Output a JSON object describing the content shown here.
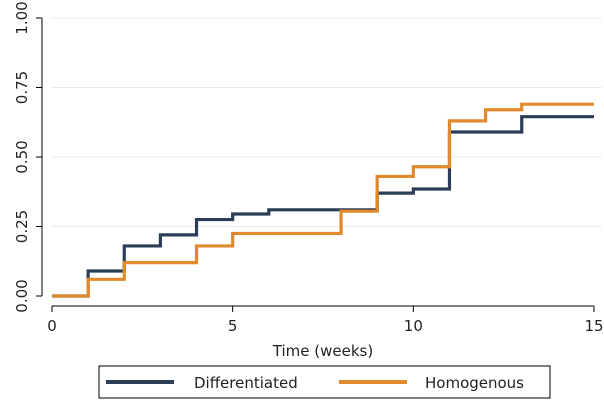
{
  "chart_data": {
    "type": "line",
    "step": true,
    "xlabel": "Time (weeks)",
    "ylabel": "",
    "xlim": [
      0,
      15
    ],
    "ylim": [
      0,
      1
    ],
    "x_ticks": [
      0,
      5,
      10,
      15
    ],
    "y_ticks": [
      0,
      0.25,
      0.5,
      0.75,
      1.0
    ],
    "x_tick_labels": [
      "0",
      "5",
      "10",
      "15"
    ],
    "y_tick_labels": [
      "0.00",
      "0.25",
      "0.50",
      "0.75",
      "1.00"
    ],
    "grid": true,
    "legend_position": "bottom",
    "series": [
      {
        "name": "Differentiated",
        "color": "#2c3e57",
        "points": [
          [
            0,
            0
          ],
          [
            1,
            0.09
          ],
          [
            2,
            0.18
          ],
          [
            3,
            0.22
          ],
          [
            4,
            0.275
          ],
          [
            5,
            0.295
          ],
          [
            6,
            0.31
          ],
          [
            9,
            0.37
          ],
          [
            10,
            0.385
          ],
          [
            11,
            0.59
          ],
          [
            13,
            0.645
          ],
          [
            15,
            0.645
          ]
        ]
      },
      {
        "name": "Homogenous",
        "color": "#e08a2c",
        "points": [
          [
            0,
            0
          ],
          [
            1,
            0.06
          ],
          [
            2,
            0.12
          ],
          [
            4,
            0.18
          ],
          [
            5,
            0.225
          ],
          [
            8,
            0.305
          ],
          [
            9,
            0.43
          ],
          [
            10,
            0.465
          ],
          [
            11,
            0.63
          ],
          [
            12,
            0.67
          ],
          [
            13,
            0.69
          ],
          [
            15,
            0.69
          ]
        ]
      }
    ]
  }
}
